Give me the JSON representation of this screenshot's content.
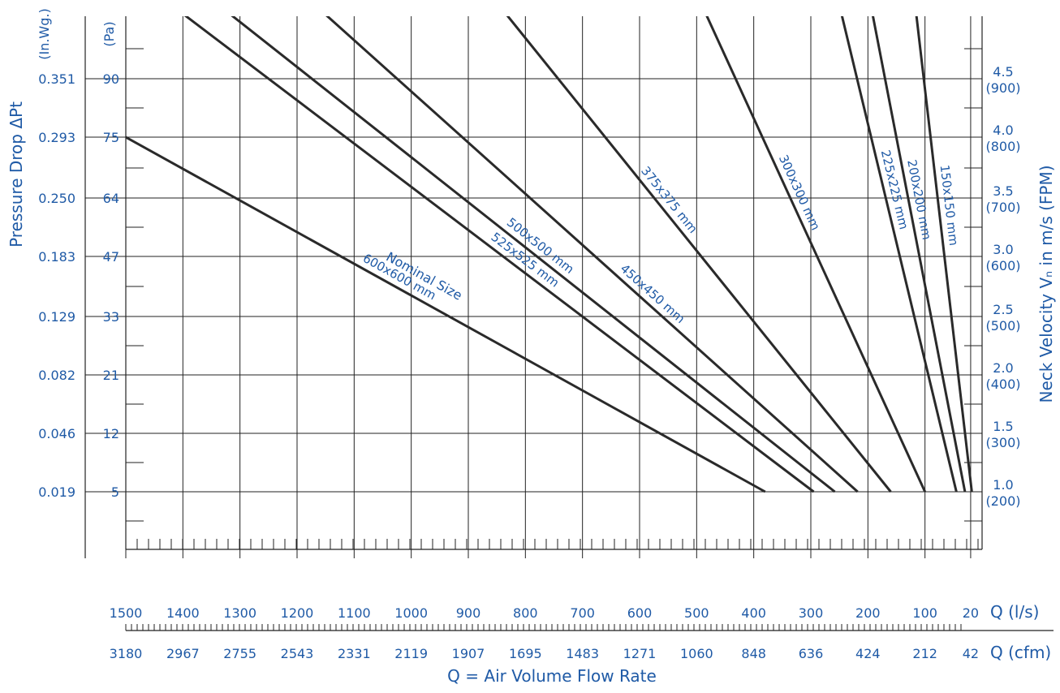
{
  "chart_data": {
    "type": "line",
    "title": "",
    "xlabel": "Q = Air Volume Flow Rate",
    "xunit_ls": "Q (l/s)",
    "xunit_cfm": "Q (cfm)",
    "ylabel_left": "Pressure Drop  ΔPt",
    "unit_inwg": "(In.Wg.)",
    "unit_pa": "(Pa)",
    "ylabel_right": "Neck Velocity Vₙ in m/s (FPM)",
    "x_ticks_ls": [
      "1500",
      "1400",
      "1300",
      "1200",
      "1100",
      "1000",
      "900",
      "800",
      "700",
      "600",
      "500",
      "400",
      "300",
      "200",
      "100",
      "20"
    ],
    "x_ticks_ls_values": [
      1500,
      1400,
      1300,
      1200,
      1100,
      1000,
      900,
      800,
      700,
      600,
      500,
      400,
      300,
      200,
      100,
      20
    ],
    "x_ticks_cfm": [
      "3180",
      "2967",
      "2755",
      "2543",
      "2331",
      "2119",
      "1907",
      "1695",
      "1483",
      "1271",
      "1060",
      "848",
      "636",
      "424",
      "212",
      "42"
    ],
    "xlim": [
      1500,
      0
    ],
    "y_ticks_pa": [
      "90",
      "75",
      "64",
      "47",
      "33",
      "21",
      "12",
      "5"
    ],
    "y_ticks_inwg": [
      "0.351",
      "0.293",
      "0.250",
      "0.183",
      "0.129",
      "0.082",
      "0.046",
      "0.019"
    ],
    "y_ticks_pa_values": [
      90,
      75,
      64,
      47,
      33,
      21,
      12,
      5
    ],
    "right_ticks_ms": [
      "4.5",
      "4.0",
      "3.5",
      "3.0",
      "2.5",
      "2.0",
      "1.5",
      "1.0"
    ],
    "right_ticks_fpm": [
      "(900)",
      "(800)",
      "(700)",
      "(600)",
      "(500)",
      "(400)",
      "(300)",
      "(200)"
    ],
    "series_header": "Nominal Size",
    "series": [
      {
        "name": "600x600 mm",
        "points": [
          [
            1500,
            75
          ],
          [
            380,
            5
          ]
        ]
      },
      {
        "name": "525x525 mm",
        "points": [
          [
            1475,
            115
          ],
          [
            295,
            5
          ]
        ]
      },
      {
        "name": "500x500 mm",
        "points": [
          [
            1390,
            115
          ],
          [
            258,
            5
          ]
        ]
      },
      {
        "name": "450x450 mm",
        "points": [
          [
            1215,
            115
          ],
          [
            218,
            5
          ]
        ]
      },
      {
        "name": "375x375 mm",
        "points": [
          [
            880,
            115
          ],
          [
            160,
            5
          ]
        ]
      },
      {
        "name": "300x300 mm",
        "points": [
          [
            510,
            115
          ],
          [
            100,
            5
          ]
        ]
      },
      {
        "name": "225x225 mm",
        "points": [
          [
            260,
            115
          ],
          [
            45,
            5
          ]
        ]
      },
      {
        "name": "200x200 mm",
        "points": [
          [
            203,
            115
          ],
          [
            30,
            5
          ]
        ]
      },
      {
        "name": "150x150 mm",
        "points": [
          [
            122,
            115
          ],
          [
            18,
            5
          ]
        ]
      }
    ],
    "grid": true,
    "line_color": "#2a2a2a",
    "text_color": "#1f5aa6"
  }
}
